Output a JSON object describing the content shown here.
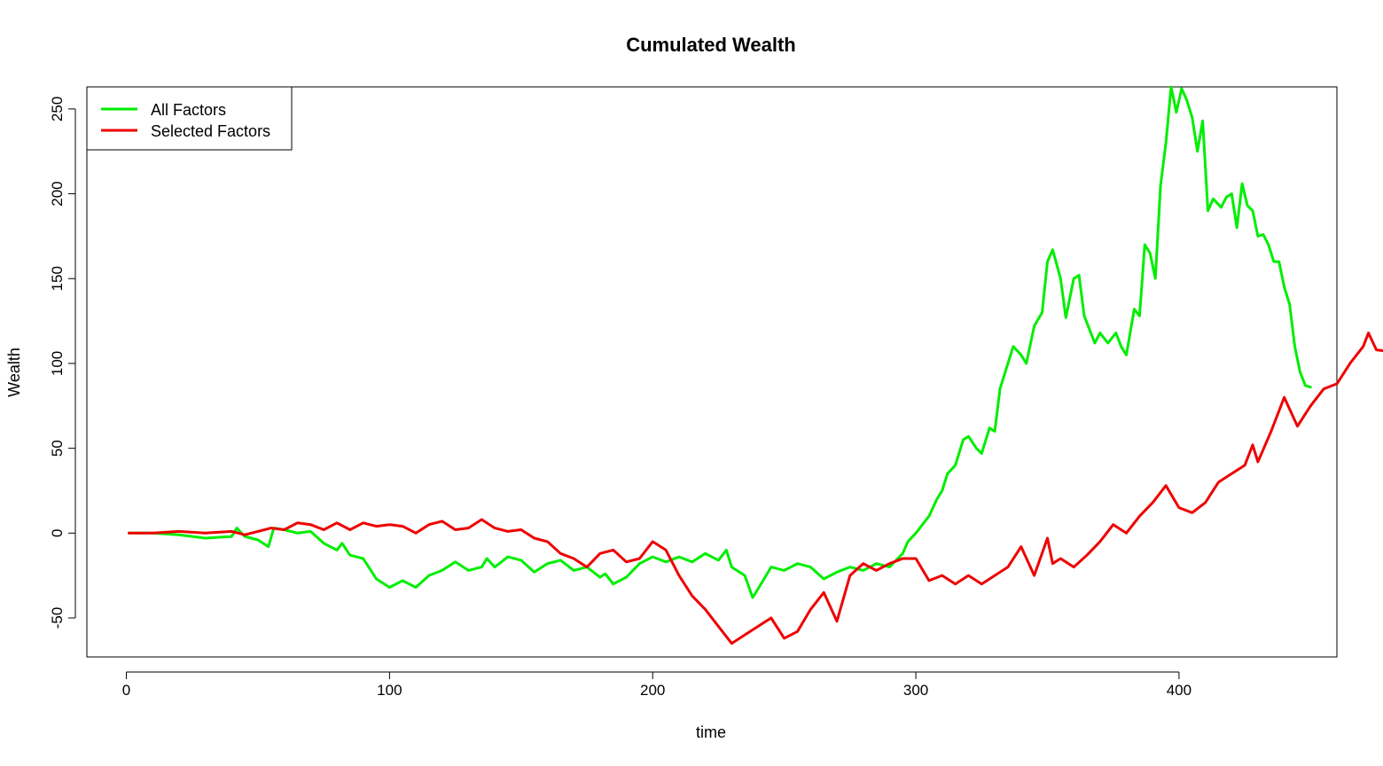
{
  "chart_data": {
    "type": "line",
    "title": "Cumulated Wealth",
    "xlabel": "time",
    "ylabel": "Wealth",
    "xlim": [
      -15,
      460
    ],
    "ylim": [
      -73,
      263
    ],
    "x_ticks": [
      0,
      100,
      200,
      300,
      400
    ],
    "y_ticks": [
      -50,
      0,
      50,
      100,
      150,
      200,
      250
    ],
    "grid": false,
    "legend_position": "top-left",
    "series": [
      {
        "name": "All Factors",
        "color": "#00ee00",
        "points": [
          [
            1,
            0
          ],
          [
            10,
            0
          ],
          [
            20,
            -1
          ],
          [
            30,
            -3
          ],
          [
            40,
            -2
          ],
          [
            42,
            3
          ],
          [
            45,
            -2
          ],
          [
            50,
            -4
          ],
          [
            54,
            -8
          ],
          [
            56,
            3
          ],
          [
            60,
            2
          ],
          [
            65,
            0
          ],
          [
            70,
            1
          ],
          [
            75,
            -6
          ],
          [
            80,
            -10
          ],
          [
            82,
            -6
          ],
          [
            85,
            -13
          ],
          [
            90,
            -15
          ],
          [
            95,
            -27
          ],
          [
            100,
            -32
          ],
          [
            105,
            -28
          ],
          [
            110,
            -32
          ],
          [
            115,
            -25
          ],
          [
            120,
            -22
          ],
          [
            125,
            -17
          ],
          [
            130,
            -22
          ],
          [
            135,
            -20
          ],
          [
            137,
            -15
          ],
          [
            140,
            -20
          ],
          [
            145,
            -14
          ],
          [
            150,
            -16
          ],
          [
            155,
            -23
          ],
          [
            160,
            -18
          ],
          [
            165,
            -16
          ],
          [
            170,
            -22
          ],
          [
            175,
            -20
          ],
          [
            180,
            -26
          ],
          [
            182,
            -24
          ],
          [
            185,
            -30
          ],
          [
            190,
            -26
          ],
          [
            195,
            -18
          ],
          [
            200,
            -14
          ],
          [
            205,
            -17
          ],
          [
            210,
            -14
          ],
          [
            215,
            -17
          ],
          [
            220,
            -12
          ],
          [
            225,
            -16
          ],
          [
            228,
            -10
          ],
          [
            230,
            -20
          ],
          [
            235,
            -25
          ],
          [
            238,
            -38
          ],
          [
            240,
            -33
          ],
          [
            245,
            -20
          ],
          [
            250,
            -22
          ],
          [
            255,
            -18
          ],
          [
            260,
            -20
          ],
          [
            265,
            -27
          ],
          [
            270,
            -23
          ],
          [
            275,
            -20
          ],
          [
            280,
            -22
          ],
          [
            285,
            -18
          ],
          [
            290,
            -20
          ],
          [
            295,
            -12
          ],
          [
            297,
            -5
          ],
          [
            300,
            0
          ],
          [
            305,
            10
          ],
          [
            308,
            20
          ],
          [
            310,
            25
          ],
          [
            312,
            35
          ],
          [
            315,
            40
          ],
          [
            318,
            55
          ],
          [
            320,
            57
          ],
          [
            323,
            50
          ],
          [
            325,
            47
          ],
          [
            328,
            62
          ],
          [
            330,
            60
          ],
          [
            332,
            85
          ],
          [
            335,
            100
          ],
          [
            337,
            110
          ],
          [
            340,
            105
          ],
          [
            342,
            100
          ],
          [
            345,
            122
          ],
          [
            348,
            130
          ],
          [
            350,
            160
          ],
          [
            352,
            167
          ],
          [
            355,
            150
          ],
          [
            357,
            127
          ],
          [
            360,
            150
          ],
          [
            362,
            152
          ],
          [
            364,
            128
          ],
          [
            366,
            120
          ],
          [
            368,
            112
          ],
          [
            370,
            118
          ],
          [
            373,
            112
          ],
          [
            376,
            118
          ],
          [
            378,
            110
          ],
          [
            380,
            105
          ],
          [
            383,
            132
          ],
          [
            385,
            128
          ],
          [
            387,
            170
          ],
          [
            389,
            165
          ],
          [
            391,
            150
          ],
          [
            393,
            205
          ],
          [
            395,
            230
          ],
          [
            397,
            263
          ],
          [
            399,
            248
          ],
          [
            401,
            262
          ],
          [
            403,
            255
          ],
          [
            405,
            245
          ],
          [
            407,
            225
          ],
          [
            409,
            243
          ],
          [
            411,
            190
          ],
          [
            413,
            197
          ],
          [
            416,
            192
          ],
          [
            418,
            198
          ],
          [
            420,
            200
          ],
          [
            422,
            180
          ],
          [
            424,
            206
          ],
          [
            426,
            193
          ],
          [
            428,
            190
          ],
          [
            430,
            175
          ],
          [
            432,
            176
          ],
          [
            434,
            170
          ],
          [
            436,
            160
          ],
          [
            438,
            160
          ],
          [
            440,
            145
          ],
          [
            442,
            135
          ],
          [
            444,
            110
          ],
          [
            446,
            95
          ],
          [
            448,
            87
          ],
          [
            450,
            86
          ]
        ]
      },
      {
        "name": "Selected Factors",
        "color": "#ee0000",
        "points": [
          [
            1,
            0
          ],
          [
            10,
            0
          ],
          [
            20,
            1
          ],
          [
            30,
            0
          ],
          [
            40,
            1
          ],
          [
            45,
            -1
          ],
          [
            50,
            1
          ],
          [
            55,
            3
          ],
          [
            60,
            2
          ],
          [
            65,
            6
          ],
          [
            70,
            5
          ],
          [
            75,
            2
          ],
          [
            80,
            6
          ],
          [
            85,
            2
          ],
          [
            90,
            6
          ],
          [
            95,
            4
          ],
          [
            100,
            5
          ],
          [
            105,
            4
          ],
          [
            110,
            0
          ],
          [
            115,
            5
          ],
          [
            120,
            7
          ],
          [
            125,
            2
          ],
          [
            130,
            3
          ],
          [
            135,
            8
          ],
          [
            140,
            3
          ],
          [
            145,
            1
          ],
          [
            150,
            2
          ],
          [
            155,
            -3
          ],
          [
            160,
            -5
          ],
          [
            165,
            -12
          ],
          [
            170,
            -15
          ],
          [
            175,
            -20
          ],
          [
            180,
            -12
          ],
          [
            185,
            -10
          ],
          [
            190,
            -17
          ],
          [
            195,
            -15
          ],
          [
            200,
            -5
          ],
          [
            205,
            -10
          ],
          [
            210,
            -25
          ],
          [
            215,
            -37
          ],
          [
            220,
            -45
          ],
          [
            225,
            -55
          ],
          [
            230,
            -65
          ],
          [
            235,
            -60
          ],
          [
            240,
            -55
          ],
          [
            245,
            -50
          ],
          [
            250,
            -62
          ],
          [
            255,
            -58
          ],
          [
            260,
            -45
          ],
          [
            265,
            -35
          ],
          [
            270,
            -52
          ],
          [
            275,
            -25
          ],
          [
            280,
            -18
          ],
          [
            285,
            -22
          ],
          [
            290,
            -18
          ],
          [
            295,
            -15
          ],
          [
            300,
            -15
          ],
          [
            305,
            -28
          ],
          [
            310,
            -25
          ],
          [
            315,
            -30
          ],
          [
            320,
            -25
          ],
          [
            325,
            -30
          ],
          [
            330,
            -25
          ],
          [
            335,
            -20
          ],
          [
            340,
            -8
          ],
          [
            345,
            -25
          ],
          [
            350,
            -3
          ],
          [
            352,
            -18
          ],
          [
            355,
            -15
          ],
          [
            360,
            -20
          ],
          [
            365,
            -13
          ],
          [
            370,
            -5
          ],
          [
            375,
            5
          ],
          [
            380,
            0
          ],
          [
            385,
            10
          ],
          [
            390,
            18
          ],
          [
            395,
            28
          ],
          [
            400,
            15
          ],
          [
            405,
            12
          ],
          [
            410,
            18
          ],
          [
            415,
            30
          ],
          [
            420,
            35
          ],
          [
            425,
            40
          ],
          [
            428,
            52
          ],
          [
            430,
            42
          ],
          [
            435,
            60
          ],
          [
            440,
            80
          ],
          [
            445,
            63
          ],
          [
            450,
            75
          ],
          [
            455,
            85
          ],
          [
            460,
            88
          ],
          [
            465,
            100
          ],
          [
            470,
            110
          ],
          [
            472,
            118
          ],
          [
            475,
            108
          ],
          [
            480,
            107
          ]
        ]
      }
    ]
  }
}
